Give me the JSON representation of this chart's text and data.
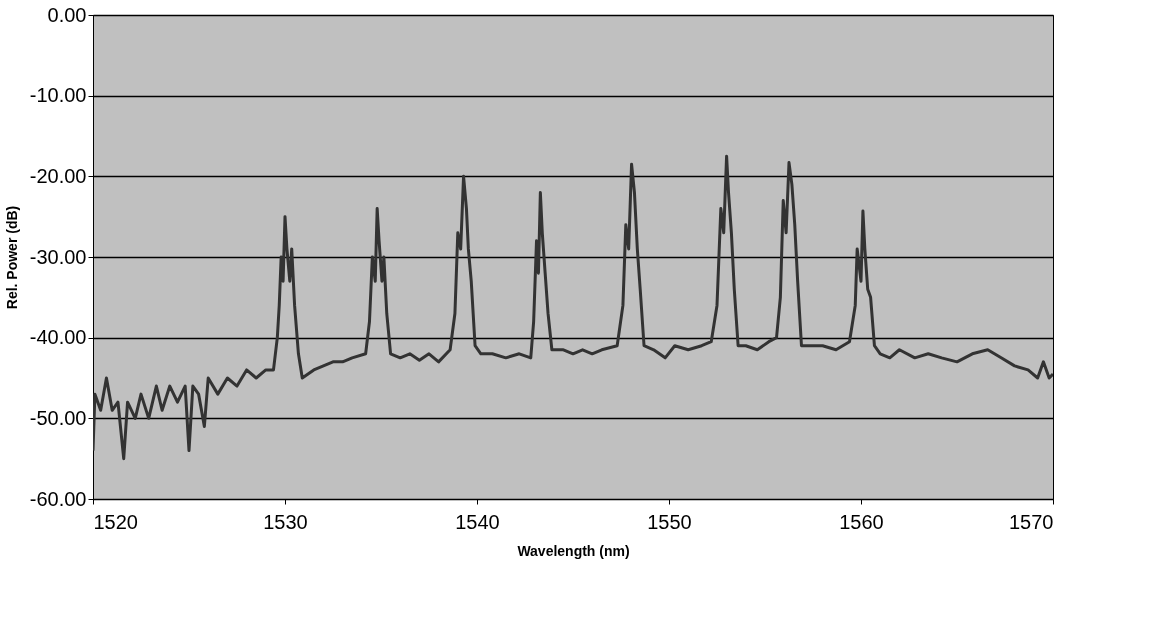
{
  "chart_data": {
    "type": "line",
    "xlabel": "Wavelength (nm)",
    "ylabel": "Rel. Power (dB)",
    "xlim": [
      1520,
      1570
    ],
    "xticks": [
      1520,
      1530,
      1540,
      1550,
      1560,
      1570
    ],
    "ylim": [
      -60,
      0
    ],
    "yticks": [
      {
        "value": -60,
        "label": "-60.00"
      },
      {
        "value": -50,
        "label": "-50.00"
      },
      {
        "value": -40,
        "label": "-40.00"
      },
      {
        "value": -30,
        "label": "-30.00"
      },
      {
        "value": -20,
        "label": "-20.00"
      },
      {
        "value": -10,
        "label": "-10.00"
      },
      {
        "value": 0,
        "label": "0.00"
      }
    ],
    "grid": "y",
    "legend": false,
    "marker": "none",
    "line_style": "solid",
    "series": [
      {
        "color": "#333333",
        "x": [
          1520.0,
          1520.1,
          1520.4,
          1520.7,
          1521.0,
          1521.3,
          1521.6,
          1521.8,
          1522.2,
          1522.5,
          1522.9,
          1523.3,
          1523.6,
          1524.0,
          1524.4,
          1524.8,
          1525.0,
          1525.2,
          1525.5,
          1525.8,
          1526.0,
          1526.5,
          1527.0,
          1527.5,
          1528.0,
          1528.5,
          1529.0,
          1529.4,
          1529.6,
          1529.7,
          1529.8,
          1529.9,
          1530.0,
          1530.1,
          1530.25,
          1530.35,
          1530.5,
          1530.7,
          1530.9,
          1531.5,
          1532.0,
          1532.5,
          1533.0,
          1533.5,
          1534.2,
          1534.4,
          1534.55,
          1534.7,
          1534.8,
          1534.9,
          1535.05,
          1535.15,
          1535.3,
          1535.5,
          1536.0,
          1536.5,
          1537.0,
          1537.5,
          1538.0,
          1538.6,
          1538.85,
          1539.0,
          1539.15,
          1539.3,
          1539.45,
          1539.55,
          1539.7,
          1539.9,
          1540.2,
          1540.8,
          1541.5,
          1542.2,
          1542.8,
          1542.95,
          1543.1,
          1543.2,
          1543.3,
          1543.4,
          1543.55,
          1543.7,
          1543.9,
          1544.5,
          1545.0,
          1545.5,
          1546.0,
          1546.5,
          1547.3,
          1547.6,
          1547.75,
          1547.9,
          1548.05,
          1548.2,
          1548.35,
          1548.5,
          1548.7,
          1549.2,
          1549.8,
          1550.3,
          1551.0,
          1551.7,
          1552.2,
          1552.5,
          1552.7,
          1552.85,
          1553.0,
          1553.1,
          1553.25,
          1553.4,
          1553.6,
          1554.0,
          1554.6,
          1555.2,
          1555.6,
          1555.8,
          1555.95,
          1556.1,
          1556.25,
          1556.4,
          1556.55,
          1556.7,
          1556.9,
          1557.3,
          1558.0,
          1558.7,
          1559.4,
          1559.7,
          1559.8,
          1560.0,
          1560.1,
          1560.2,
          1560.35,
          1560.5,
          1560.7,
          1561.0,
          1561.5,
          1562.0,
          1562.8,
          1563.5,
          1564.2,
          1565.0,
          1565.8,
          1566.6,
          1567.3,
          1568.0,
          1568.7,
          1569.2,
          1569.5,
          1569.8,
          1570.0
        ],
        "values": [
          -54,
          -47,
          -49,
          -45,
          -49,
          -48,
          -55,
          -48,
          -50,
          -47,
          -50,
          -46,
          -49,
          -46,
          -48,
          -46,
          -54,
          -46,
          -47,
          -51,
          -45,
          -47,
          -45,
          -46,
          -44,
          -45,
          -44,
          -44,
          -40,
          -36,
          -30,
          -33,
          -25,
          -29,
          -33,
          -29,
          -36,
          -42,
          -45,
          -44,
          -43.5,
          -43,
          -43,
          -42.5,
          -42,
          -38,
          -30,
          -33,
          -24,
          -28,
          -33,
          -30,
          -37,
          -42,
          -42.5,
          -42,
          -42.8,
          -42,
          -43,
          -41.5,
          -37,
          -27,
          -29,
          -20,
          -24,
          -29,
          -33,
          -41,
          -42,
          -42,
          -42.5,
          -42,
          -42.5,
          -38,
          -28,
          -32,
          -22,
          -27,
          -32,
          -37,
          -41.5,
          -41.5,
          -42,
          -41.5,
          -42,
          -41.5,
          -41,
          -36,
          -26,
          -29,
          -18.5,
          -22,
          -29,
          -34,
          -41,
          -41.5,
          -42.5,
          -41,
          -41.5,
          -41,
          -40.5,
          -36,
          -24,
          -27,
          -17.5,
          -22,
          -27,
          -34,
          -41,
          -41,
          -41.5,
          -40.5,
          -40,
          -35,
          -23,
          -27,
          -18.3,
          -21,
          -26,
          -33,
          -41,
          -41,
          -41,
          -41.5,
          -40.5,
          -36,
          -29,
          -33,
          -24.3,
          -29,
          -34,
          -35,
          -41,
          -42,
          -42.5,
          -41.5,
          -42.5,
          -42,
          -42.5,
          -43,
          -42,
          -41.5,
          -42.5,
          -43.5,
          -44,
          -45,
          -43,
          -45,
          -44.5
        ]
      }
    ]
  }
}
